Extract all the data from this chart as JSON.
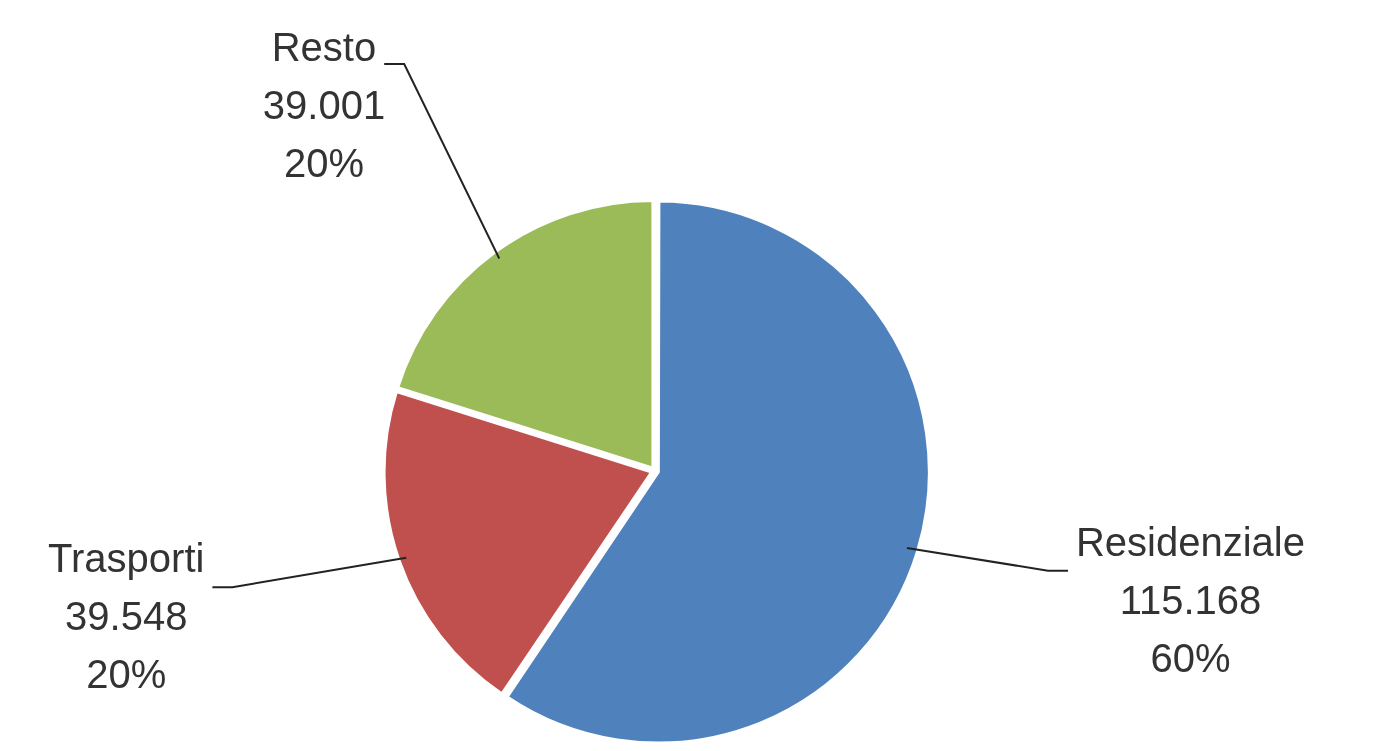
{
  "chart_data": {
    "type": "pie",
    "categories": [
      "Residenziale",
      "Trasporti",
      "Resto"
    ],
    "values": [
      115168,
      39548,
      39001
    ],
    "colors": [
      "#4f81bd",
      "#c0504d",
      "#9bbb59"
    ],
    "value_labels": [
      "115.168\n60%",
      "39.548\n20%",
      "39.001\n20%"
    ],
    "legend": false
  }
}
